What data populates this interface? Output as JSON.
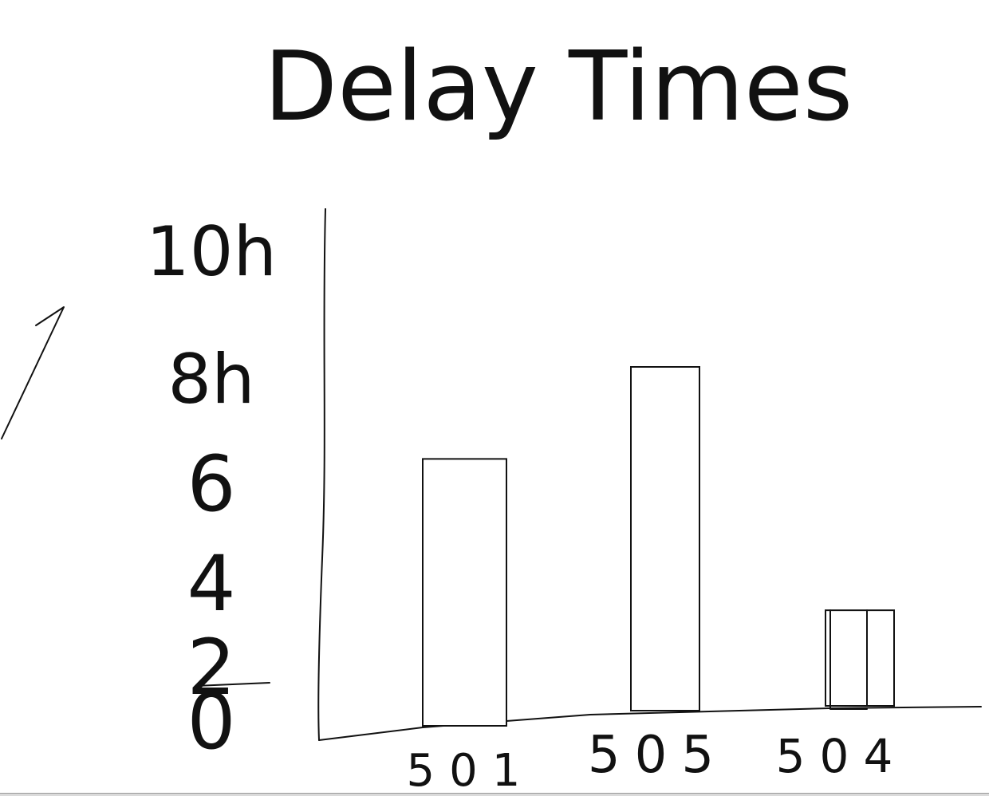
{
  "chart_data": {
    "type": "bar",
    "title": "Delay Times",
    "categories": [
      "501",
      "505",
      "504"
    ],
    "values": [
      5.8,
      7.8,
      2.2
    ],
    "ylim": [
      0,
      10
    ],
    "yticks": [
      {
        "value": 0,
        "label": "0"
      },
      {
        "value": 2,
        "label": "2"
      },
      {
        "value": 4,
        "label": "4"
      },
      {
        "value": 6,
        "label": "6"
      },
      {
        "value": 8,
        "label": "8h"
      },
      {
        "value": 10,
        "label": "10h"
      }
    ],
    "grid": false,
    "legend": "none",
    "colors": {
      "ink": "#111111",
      "bar_fill": "#ffffff",
      "background": "#ffffff"
    }
  }
}
